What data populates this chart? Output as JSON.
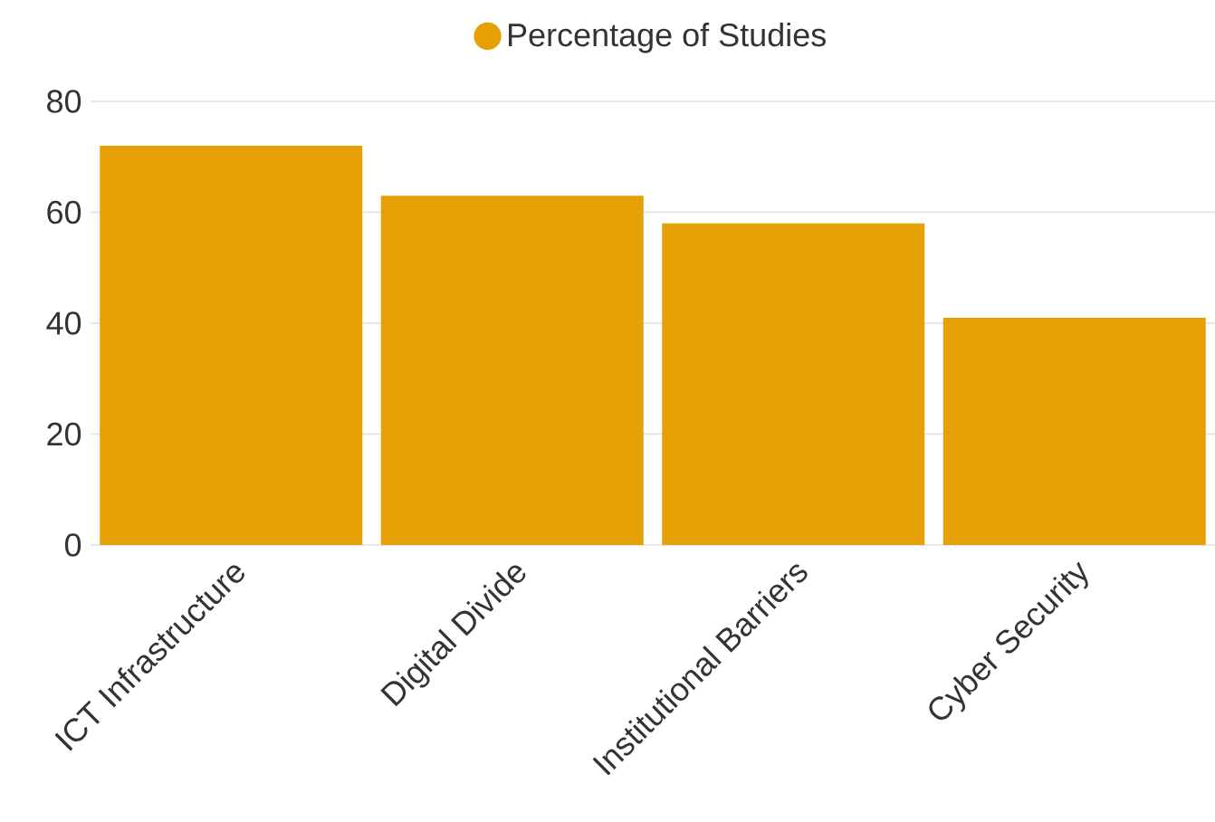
{
  "chart_data": {
    "type": "bar",
    "categories": [
      "ICT Infrastructure",
      "Digital Divide",
      "Institutional Barriers",
      "Cyber Security"
    ],
    "series": [
      {
        "name": "Percentage of Studies",
        "color": "#e4a004",
        "values": [
          72,
          63,
          58,
          41
        ]
      }
    ],
    "ylim": [
      0,
      80
    ],
    "yticks": [
      0,
      20,
      40,
      60,
      80
    ],
    "grid": "y",
    "legend": "top"
  }
}
